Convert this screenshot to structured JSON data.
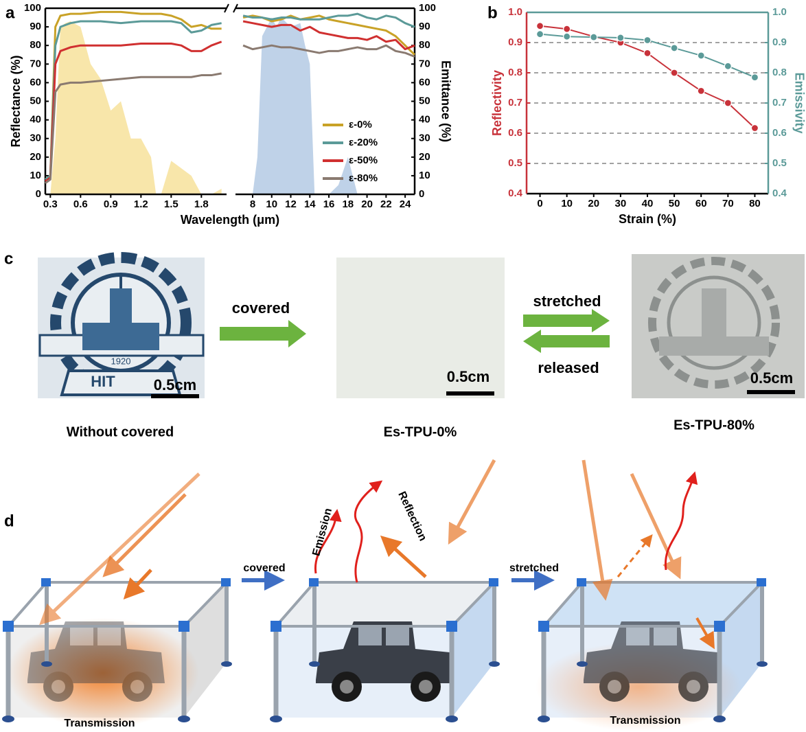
{
  "panel_labels": [
    "a",
    "b",
    "c",
    "d"
  ],
  "chart_data": [
    {
      "type": "line",
      "xlabel": "Wavelength (μm)",
      "ylabel": "Reflectance (%)",
      "y2label": "Emittance (%)",
      "x": [
        0.25,
        0.3,
        0.35,
        0.4,
        0.5,
        0.6,
        0.8,
        1.0,
        1.2,
        1.4,
        1.5,
        1.6,
        1.7,
        1.8,
        1.9,
        2.0,
        7,
        8,
        9,
        10,
        11,
        12,
        13,
        14,
        15,
        16,
        17,
        18,
        19,
        20,
        21,
        22,
        23,
        24,
        25
      ],
      "xlim": [
        0.25,
        25
      ],
      "xbreak": [
        2.05,
        6.2
      ],
      "xticks": [
        0.3,
        0.6,
        0.9,
        1.2,
        1.5,
        1.8,
        8,
        10,
        12,
        14,
        16,
        18,
        20,
        22,
        24
      ],
      "ylim": [
        0,
        100
      ],
      "yticks": [
        0,
        10,
        20,
        30,
        40,
        50,
        60,
        70,
        80,
        90,
        100
      ],
      "y2lim": [
        0,
        100
      ],
      "y2ticks": [
        0,
        10,
        20,
        30,
        40,
        50,
        60,
        70,
        80,
        90,
        100
      ],
      "legend": "center right",
      "series": [
        {
          "name": "ε-0%",
          "color": "#c9a227",
          "values": [
            8,
            10,
            90,
            96,
            97,
            97,
            98,
            98,
            97,
            97,
            96,
            94,
            90,
            91,
            89,
            89,
            95,
            96,
            95,
            93,
            94,
            96,
            94,
            95,
            96,
            94,
            93,
            92,
            91,
            90,
            89,
            88,
            85,
            80,
            75
          ]
        },
        {
          "name": "ε-20%",
          "color": "#5b9a98",
          "values": [
            8,
            10,
            80,
            90,
            92,
            93,
            93,
            92,
            93,
            93,
            93,
            92,
            87,
            88,
            91,
            92,
            96,
            95,
            95,
            94,
            95,
            95,
            94,
            94,
            94,
            95,
            96,
            96,
            97,
            95,
            94,
            96,
            95,
            92,
            90
          ]
        },
        {
          "name": "ε-50%",
          "color": "#d03030",
          "values": [
            7,
            9,
            70,
            77,
            79,
            80,
            80,
            80,
            81,
            81,
            81,
            80,
            77,
            77,
            80,
            82,
            93,
            92,
            91,
            90,
            91,
            91,
            88,
            90,
            87,
            86,
            85,
            84,
            84,
            83,
            85,
            82,
            83,
            78,
            80
          ]
        },
        {
          "name": "ε-80%",
          "color": "#8a7a70",
          "values": [
            6,
            8,
            55,
            59,
            60,
            60,
            61,
            62,
            63,
            63,
            63,
            63,
            63,
            64,
            64,
            65,
            80,
            78,
            79,
            80,
            79,
            79,
            78,
            77,
            76,
            77,
            77,
            78,
            79,
            78,
            78,
            80,
            77,
            76,
            74
          ]
        }
      ],
      "bands": [
        {
          "color": "#f6dd8e",
          "x": [
            0.3,
            0.35,
            0.4,
            0.45,
            0.5,
            0.6,
            0.7,
            0.8,
            0.9,
            1.0,
            1.1,
            1.2,
            1.3,
            1.35,
            1.4,
            1.5,
            1.6,
            1.7,
            1.8,
            1.9,
            2.0
          ],
          "values": [
            0,
            30,
            90,
            92,
            93,
            90,
            70,
            62,
            45,
            50,
            30,
            30,
            20,
            0,
            0,
            18,
            14,
            10,
            0,
            0,
            3
          ]
        },
        {
          "color": "#a9c3e0",
          "x": [
            7,
            8,
            8.5,
            9,
            9.5,
            10,
            10.5,
            11,
            12,
            13,
            13.5,
            14,
            14.5,
            15,
            16,
            17,
            18,
            18.5,
            19,
            20,
            25
          ],
          "values": [
            0,
            0,
            20,
            85,
            90,
            95,
            90,
            95,
            90,
            92,
            80,
            70,
            0,
            0,
            0,
            5,
            20,
            10,
            0,
            0,
            0
          ]
        }
      ]
    },
    {
      "type": "line",
      "xlabel": "Strain (%)",
      "ylabel": "Reflectivity",
      "y2label": "Emissivity",
      "x": [
        0,
        10,
        20,
        30,
        40,
        50,
        60,
        70,
        80
      ],
      "xlim": [
        -5,
        85
      ],
      "xticks": [
        0,
        10,
        20,
        30,
        40,
        50,
        60,
        70,
        80
      ],
      "ylim": [
        0.4,
        1.0
      ],
      "yticks": [
        0.4,
        0.5,
        0.6,
        0.7,
        0.8,
        0.9,
        {
          "value": 1.0,
          "label": "1.0"
        }
      ],
      "y2lim": [
        0.4,
        1.0
      ],
      "y2ticks": [
        0.4,
        0.5,
        0.6,
        0.7,
        0.8,
        0.9,
        {
          "value": 1.0,
          "label": "1.0"
        }
      ],
      "grid": true,
      "markers": true,
      "axis_colors": true,
      "series": [
        {
          "color": "#c8323a",
          "values": [
            0.955,
            0.945,
            0.92,
            0.9,
            0.865,
            0.8,
            0.74,
            0.7,
            0.617
          ]
        },
        {
          "color": "#5b9a98",
          "axis": "y2",
          "values": [
            0.928,
            0.92,
            0.918,
            0.916,
            0.908,
            0.882,
            0.857,
            0.822,
            0.785
          ]
        }
      ]
    }
  ],
  "panel_c": {
    "arrow_covered": "covered",
    "arrow_stretched": "stretched",
    "arrow_released": "released",
    "logo_year": "1920",
    "logo_letters": "HIT",
    "scale_bars": [
      "0.5cm",
      "0.5cm",
      "0.5cm"
    ],
    "captions": [
      "Without covered",
      "Es-TPU-0%",
      "Es-TPU-80%"
    ]
  },
  "panel_d": {
    "arrow_covered": "covered",
    "arrow_stretched": "stretched",
    "emission": "Emission",
    "reflection": "Reflection",
    "transmission": [
      "Transmission",
      "Transmission"
    ]
  }
}
